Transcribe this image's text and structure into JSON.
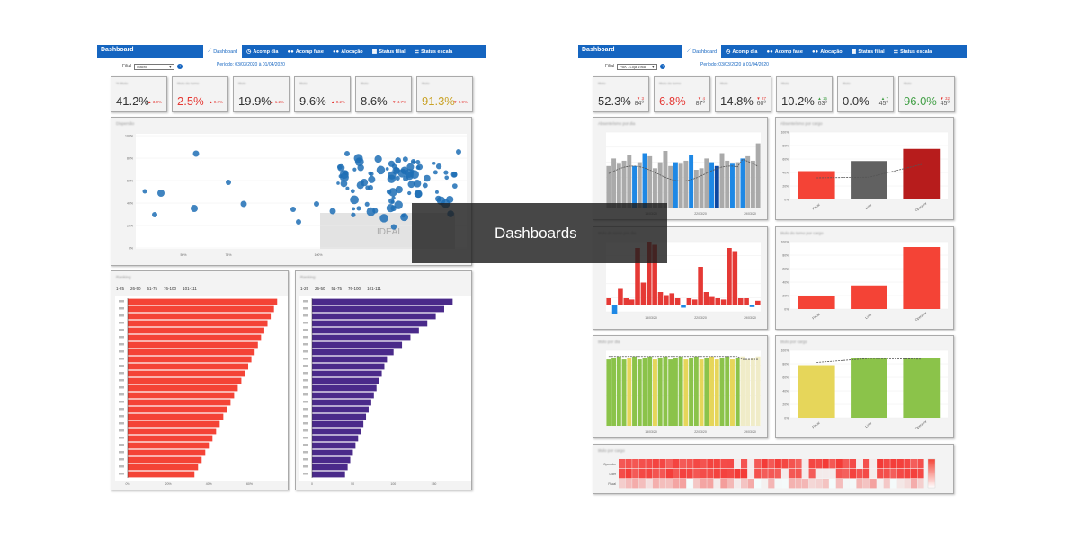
{
  "overlay": {
    "title": "Dashboards"
  },
  "left": {
    "header_title": "Dashboard",
    "tabs": [
      {
        "label": "Dashboard",
        "icon": "line-chart-icon",
        "active": true
      },
      {
        "label": "Acomp dia",
        "icon": "clock-icon",
        "active": false
      },
      {
        "label": "Acomp fase",
        "icon": "users-icon",
        "active": false
      },
      {
        "label": "Alocação",
        "icon": "group-icon",
        "active": false
      },
      {
        "label": "Status filial",
        "icon": "grid-icon",
        "active": false
      },
      {
        "label": "Status escala",
        "icon": "list-icon",
        "active": false
      }
    ],
    "filter_label": "Filial",
    "filter_value": "Macro",
    "periodo": "Período: 03/03/2020 à 01/04/2020",
    "kpis": [
      {
        "label": "% titulo",
        "value": "41.2%",
        "delta": "▲ 3.0%",
        "color": "#333333",
        "dcolor": "#e53935"
      },
      {
        "label": "titulo do turno",
        "value": "2.5%",
        "delta": "▲ 0.2%",
        "color": "#e53935",
        "dcolor": "#e53935"
      },
      {
        "label": "titulo",
        "value": "19.9%",
        "delta": "▲ 1.2%",
        "color": "#333333",
        "dcolor": "#e53935"
      },
      {
        "label": "titulo",
        "value": "9.6%",
        "delta": "▲ 0.2%",
        "color": "#333333",
        "dcolor": "#e53935"
      },
      {
        "label": "titulo",
        "value": "8.6%",
        "delta": "▼ 4.7%",
        "color": "#333333",
        "dcolor": "#e53935"
      },
      {
        "label": "titulo",
        "value": "91.3%",
        "delta": "▼ 0.9%",
        "color": "#c9a227",
        "dcolor": "#e53935"
      }
    ],
    "scatter_title": "Dispersão",
    "scatter_ideal": "IDEAL",
    "scatter_xticks": [
      "50%",
      "75%",
      "100%"
    ],
    "scatter_yticks": [
      "100%",
      "80%",
      "60%",
      "40%",
      "20%",
      "0%"
    ],
    "rank1_title": "Ranking",
    "rank2_title": "Ranking",
    "pager": [
      "1-25",
      "26-50",
      "51-75",
      "76-100",
      "101-111"
    ],
    "rank1_xticks": [
      "0%",
      "20%",
      "40%",
      "60%"
    ],
    "rank2_xticks": [
      "0",
      "50",
      "100",
      "150"
    ],
    "colors": {
      "header": "#1565c0",
      "red": "#f44336",
      "purple": "#4a2a8a",
      "scatter": "#1f6fb5"
    }
  },
  "right": {
    "header_title": "Dashboard",
    "tabs": [
      {
        "label": "Dashboard",
        "icon": "line-chart-icon",
        "active": true
      },
      {
        "label": "Acomp dia",
        "icon": "clock-icon",
        "active": false
      },
      {
        "label": "Acomp fase",
        "icon": "users-icon",
        "active": false
      },
      {
        "label": "Alocação",
        "icon": "group-icon",
        "active": false
      },
      {
        "label": "Status filial",
        "icon": "grid-icon",
        "active": false
      },
      {
        "label": "Status escala",
        "icon": "list-icon",
        "active": false
      }
    ],
    "filter_label": "Filial",
    "filter_value": "PAK - Loja 1968",
    "periodo": "Período: 03/03/2020 à 01/04/2020",
    "kpis": [
      {
        "label": "titulo",
        "value": "52.3%",
        "delta": "▼ 3",
        "rank": "84º",
        "color": "#333333",
        "dcolor": "#e53935"
      },
      {
        "label": "titulo do turno",
        "value": "6.8%",
        "delta": "▼ 4",
        "rank": "87º",
        "color": "#e53935",
        "dcolor": "#e53935"
      },
      {
        "label": "titulo",
        "value": "14.8%",
        "delta": "▼ 27",
        "rank": "60º",
        "color": "#333333",
        "dcolor": "#e53935"
      },
      {
        "label": "titulo",
        "value": "10.2%",
        "delta": "▲ 15",
        "rank": "63º",
        "color": "#333333",
        "dcolor": "#43a047"
      },
      {
        "label": "titulo",
        "value": "0.0%",
        "delta": "▲ 7",
        "rank": "45º",
        "color": "#333333",
        "dcolor": "#43a047"
      },
      {
        "label": "titulo",
        "value": "96.0%",
        "delta": "▼ 32",
        "rank": "45º",
        "color": "#43a047",
        "dcolor": "#e53935"
      }
    ],
    "panel_titles": [
      "Absenteísmo por dia",
      "Absenteísmo por cargo",
      "titulo do turno por dia",
      "titulo do turno por cargo",
      "titulo por dia",
      "titulo por cargo",
      "titulo por cargo"
    ],
    "bar_cats": [
      "Fiscal",
      "Líder",
      "Operador"
    ],
    "heat_rows": [
      "Operador",
      "Líder",
      "Fiscal"
    ],
    "bar_yticks": [
      "100%",
      "80%",
      "60%",
      "40%",
      "20%",
      "0%"
    ],
    "dates": [
      "15/03/20",
      "22/03/20",
      "29/03/20"
    ]
  }
}
